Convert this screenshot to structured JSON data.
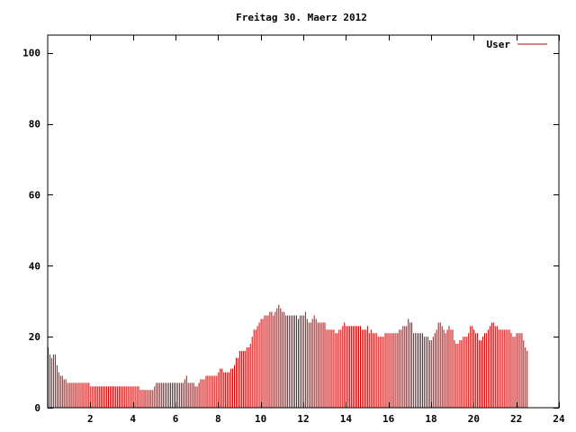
{
  "chart_data": {
    "type": "bar",
    "title": "Freitag 30. Maerz 2012",
    "xlabel": "",
    "ylabel": "",
    "xlim": [
      0,
      24
    ],
    "ylim": [
      0,
      105
    ],
    "xticks": [
      2,
      4,
      6,
      8,
      10,
      12,
      14,
      16,
      18,
      20,
      22,
      24
    ],
    "yticks": [
      0,
      20,
      40,
      60,
      80,
      100
    ],
    "grid": false,
    "legend_position": "top-right",
    "bar_color": "#cc0000",
    "series": [
      {
        "name": "User",
        "x_step_hours": 0.0833,
        "values": [
          17,
          15,
          14,
          15,
          15,
          12,
          10,
          9,
          9,
          8,
          8,
          7,
          7,
          7,
          7,
          7,
          7,
          7,
          7,
          7,
          7,
          7,
          7,
          7,
          6,
          6,
          6,
          6,
          6,
          6,
          6,
          6,
          6,
          6,
          6,
          6,
          6,
          6,
          6,
          6,
          6,
          6,
          6,
          6,
          6,
          6,
          6,
          6,
          6,
          6,
          6,
          6,
          5,
          5,
          5,
          5,
          5,
          5,
          5,
          5,
          6,
          7,
          7,
          7,
          7,
          7,
          7,
          7,
          7,
          7,
          7,
          7,
          7,
          7,
          7,
          7,
          7,
          8,
          9,
          7,
          7,
          7,
          7,
          6,
          6,
          7,
          8,
          8,
          8,
          9,
          9,
          9,
          9,
          9,
          9,
          9,
          10,
          11,
          11,
          10,
          10,
          10,
          10,
          11,
          11,
          12,
          14,
          14,
          16,
          16,
          16,
          16,
          17,
          17,
          18,
          20,
          22,
          22,
          23,
          24,
          25,
          25,
          26,
          26,
          26,
          27,
          27,
          26,
          27,
          28,
          29,
          28,
          27,
          27,
          26,
          26,
          26,
          26,
          26,
          26,
          26,
          25,
          26,
          26,
          26,
          27,
          25,
          24,
          24,
          25,
          26,
          25,
          24,
          24,
          24,
          24,
          24,
          22,
          22,
          22,
          22,
          22,
          21,
          21,
          22,
          22,
          23,
          24,
          23,
          23,
          23,
          23,
          23,
          23,
          23,
          23,
          23,
          22,
          22,
          22,
          23,
          21,
          22,
          21,
          21,
          21,
          20,
          20,
          20,
          20,
          21,
          21,
          21,
          21,
          21,
          21,
          21,
          21,
          22,
          22,
          23,
          23,
          23,
          25,
          24,
          24,
          21,
          21,
          21,
          21,
          21,
          21,
          20,
          20,
          20,
          19,
          19,
          20,
          21,
          22,
          24,
          24,
          23,
          22,
          21,
          22,
          23,
          22,
          22,
          19,
          18,
          18,
          19,
          19,
          20,
          20,
          20,
          21,
          23,
          23,
          22,
          21,
          21,
          19,
          19,
          20,
          21,
          21,
          22,
          23,
          24,
          24,
          23,
          23,
          22,
          22,
          22,
          22,
          22,
          22,
          22,
          21,
          20,
          20,
          21,
          21,
          21,
          21,
          19,
          17,
          16
        ]
      }
    ]
  }
}
